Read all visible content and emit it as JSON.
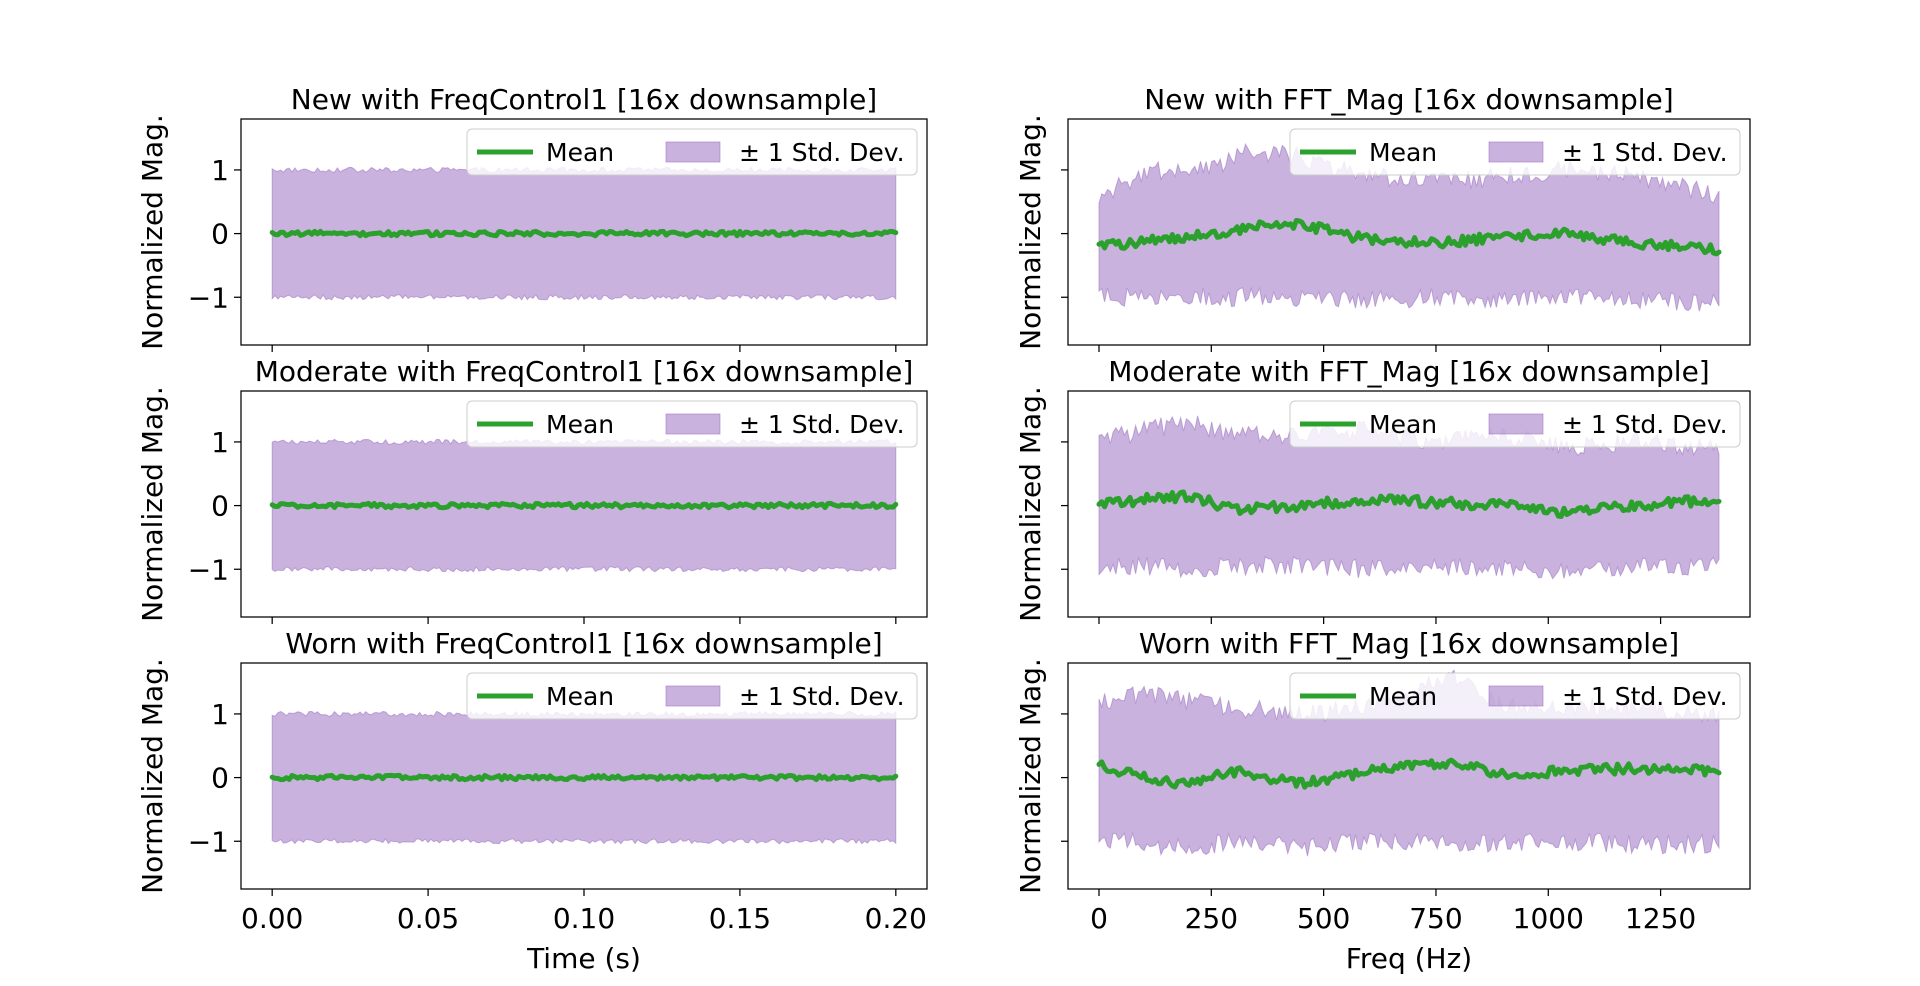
{
  "chart_data": [
    {
      "type": "area",
      "title": "New with FreqControl1 [16x downsample]",
      "xlabel": "",
      "ylabel": "Normalized Mag.",
      "xlim": [
        -0.01,
        0.21
      ],
      "ylim": [
        -1.75,
        1.8
      ],
      "xticks": [
        0.0,
        0.05,
        0.1,
        0.15,
        0.2
      ],
      "xtick_labels": [],
      "yticks": [
        -1,
        0,
        1
      ],
      "ytick_labels": [
        "−1",
        "0",
        "1"
      ],
      "x": [
        0.0,
        0.2
      ],
      "series": [
        {
          "name": "Mean",
          "kind": "line",
          "color": "#2ca02c",
          "values": [
            0.0,
            0.0
          ],
          "noise": 0.035
        },
        {
          "name": "± 1 Std. Dev.",
          "kind": "band",
          "color": "#9467bd",
          "upper": [
            1.0,
            1.0
          ],
          "lower": [
            -1.0,
            -1.0
          ],
          "noise": 0.04
        }
      ],
      "legend": {
        "position": "top-right",
        "ncol": 2
      }
    },
    {
      "type": "area",
      "title": "New with FFT_Mag [16x downsample]",
      "xlabel": "",
      "ylabel": "Normalized Mag.",
      "xlim": [
        -69,
        1449
      ],
      "ylim": [
        -1.75,
        1.8
      ],
      "xticks": [
        0,
        250,
        500,
        750,
        1000,
        1250
      ],
      "xtick_labels": [],
      "yticks": [
        -1,
        0,
        1
      ],
      "ytick_labels": [],
      "x": [
        0,
        125,
        250,
        340,
        450,
        600,
        750,
        900,
        1040,
        1200,
        1380
      ],
      "series": [
        {
          "name": "Mean",
          "kind": "line",
          "color": "#2ca02c",
          "values": [
            -0.2,
            -0.1,
            0.0,
            0.1,
            0.15,
            -0.1,
            -0.15,
            -0.05,
            0.0,
            -0.15,
            -0.25
          ],
          "noise": 0.08
        },
        {
          "name": "± 1 Std. Dev.",
          "kind": "band",
          "color": "#9467bd",
          "upper": [
            0.6,
            1.0,
            1.0,
            1.3,
            1.2,
            0.9,
            0.8,
            0.9,
            1.0,
            0.9,
            0.6
          ],
          "lower": [
            -1.0,
            -1.0,
            -1.0,
            -1.0,
            -1.0,
            -1.05,
            -1.0,
            -1.05,
            -1.0,
            -1.05,
            -1.1
          ],
          "noise": 0.15
        }
      ],
      "legend": {
        "position": "top-right",
        "ncol": 2
      }
    },
    {
      "type": "area",
      "title": "Moderate with FreqControl1 [16x downsample]",
      "xlabel": "",
      "ylabel": "Normalized Mag.",
      "xlim": [
        -0.01,
        0.21
      ],
      "ylim": [
        -1.75,
        1.8
      ],
      "xticks": [
        0.0,
        0.05,
        0.1,
        0.15,
        0.2
      ],
      "xtick_labels": [],
      "yticks": [
        -1,
        0,
        1
      ],
      "ytick_labels": [
        "−1",
        "0",
        "1"
      ],
      "x": [
        0.0,
        0.2
      ],
      "series": [
        {
          "name": "Mean",
          "kind": "line",
          "color": "#2ca02c",
          "values": [
            0.0,
            0.0
          ],
          "noise": 0.035
        },
        {
          "name": "± 1 Std. Dev.",
          "kind": "band",
          "color": "#9467bd",
          "upper": [
            1.0,
            1.0
          ],
          "lower": [
            -1.0,
            -1.0
          ],
          "noise": 0.04
        }
      ],
      "legend": {
        "position": "top-right",
        "ncol": 2
      }
    },
    {
      "type": "area",
      "title": "Moderate with FFT_Mag [16x downsample]",
      "xlabel": "",
      "ylabel": "Normalized Mag.",
      "xlim": [
        -69,
        1449
      ],
      "ylim": [
        -1.75,
        1.8
      ],
      "xticks": [
        0,
        250,
        500,
        750,
        1000,
        1250
      ],
      "xtick_labels": [],
      "yticks": [
        -1,
        0,
        1
      ],
      "ytick_labels": [],
      "x": [
        0,
        100,
        200,
        300,
        450,
        600,
        750,
        900,
        1040,
        1200,
        1380
      ],
      "series": [
        {
          "name": "Mean",
          "kind": "line",
          "color": "#2ca02c",
          "values": [
            0.0,
            0.1,
            0.15,
            -0.05,
            0.0,
            0.1,
            0.05,
            0.0,
            -0.1,
            0.0,
            0.1
          ],
          "noise": 0.08
        },
        {
          "name": "± 1 Std. Dev.",
          "kind": "band",
          "color": "#9467bd",
          "upper": [
            1.0,
            1.2,
            1.3,
            1.1,
            1.1,
            1.2,
            1.0,
            1.1,
            0.9,
            1.0,
            0.9
          ],
          "lower": [
            -0.95,
            -0.95,
            -1.0,
            -0.95,
            -0.95,
            -1.0,
            -0.95,
            -1.0,
            -1.0,
            -0.95,
            -0.95
          ],
          "noise": 0.15
        }
      ],
      "legend": {
        "position": "top-right",
        "ncol": 2
      }
    },
    {
      "type": "area",
      "title": "Worn with FreqControl1 [16x downsample]",
      "xlabel": "Time (s)",
      "ylabel": "Normalized Mag.",
      "xlim": [
        -0.01,
        0.21
      ],
      "ylim": [
        -1.75,
        1.8
      ],
      "xticks": [
        0.0,
        0.05,
        0.1,
        0.15,
        0.2
      ],
      "xtick_labels": [
        "0.00",
        "0.05",
        "0.10",
        "0.15",
        "0.20"
      ],
      "yticks": [
        -1,
        0,
        1
      ],
      "ytick_labels": [
        "−1",
        "0",
        "1"
      ],
      "x": [
        0.0,
        0.2
      ],
      "series": [
        {
          "name": "Mean",
          "kind": "line",
          "color": "#2ca02c",
          "values": [
            0.0,
            0.0
          ],
          "noise": 0.035
        },
        {
          "name": "± 1 Std. Dev.",
          "kind": "band",
          "color": "#9467bd",
          "upper": [
            1.0,
            1.0
          ],
          "lower": [
            -1.0,
            -1.0
          ],
          "noise": 0.04
        }
      ],
      "legend": {
        "position": "top-right",
        "ncol": 2
      }
    },
    {
      "type": "area",
      "title": "Worn with FFT_Mag [16x downsample]",
      "xlabel": "Freq (Hz)",
      "ylabel": "Normalized Mag.",
      "xlim": [
        -69,
        1449
      ],
      "ylim": [
        -1.75,
        1.8
      ],
      "xticks": [
        0,
        250,
        500,
        750,
        1000,
        1250
      ],
      "xtick_labels": [
        "0",
        "250",
        "500",
        "750",
        "1000",
        "1250"
      ],
      "yticks": [
        -1,
        0,
        1
      ],
      "ytick_labels": [],
      "x": [
        0,
        100,
        200,
        300,
        450,
        600,
        790,
        900,
        1040,
        1200,
        1380
      ],
      "series": [
        {
          "name": "Mean",
          "kind": "line",
          "color": "#2ca02c",
          "values": [
            0.2,
            0.0,
            -0.1,
            0.1,
            -0.1,
            0.1,
            0.25,
            0.05,
            0.1,
            0.15,
            0.1
          ],
          "noise": 0.08
        },
        {
          "name": "± 1 Std. Dev.",
          "kind": "band",
          "color": "#9467bd",
          "upper": [
            1.2,
            1.3,
            1.2,
            1.1,
            1.0,
            1.1,
            1.6,
            1.1,
            1.1,
            1.1,
            1.0
          ],
          "lower": [
            -0.95,
            -1.05,
            -1.1,
            -1.0,
            -1.1,
            -1.0,
            -1.05,
            -1.05,
            -1.0,
            -1.05,
            -1.05
          ],
          "noise": 0.15
        }
      ],
      "legend": {
        "position": "top-right",
        "ncol": 2
      }
    }
  ]
}
